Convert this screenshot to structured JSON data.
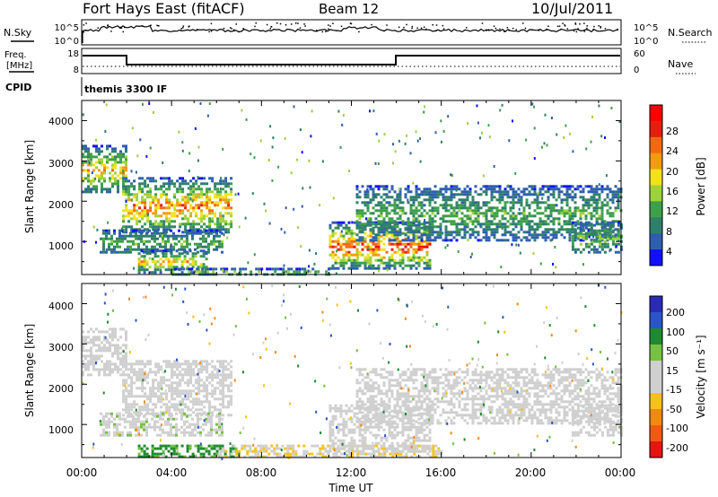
{
  "header": {
    "station": "Fort Hays East (fitACF)",
    "beam": "Beam 12",
    "date": "10/Jul/2011"
  },
  "colors": {
    "power_scale": [
      "#1010ff",
      "#2e5fae",
      "#2f7f6a",
      "#3ea048",
      "#9fd23a",
      "#f2e21a",
      "#f29b0f",
      "#f26a10",
      "#e61e10",
      "#ff0000"
    ],
    "velocity_scale": [
      "#2a2ab8",
      "#2a55c8",
      "#1f8a30",
      "#76c043",
      "#cfcfcf",
      "#cfcfcf",
      "#f6c21a",
      "#f28a12",
      "#f25a12",
      "#e81414"
    ]
  },
  "panels": {
    "noise": {
      "left_label": "N.Sky",
      "right_label": "N.Search",
      "left_ticks": [
        "10^5",
        "10^0"
      ],
      "right_ticks": [
        "10^5",
        "10^0"
      ]
    },
    "freq": {
      "left_label_1": "Freq.",
      "left_label_2": "[MHz]",
      "right_label": "Nave",
      "left_ticks": [
        "18",
        "8"
      ],
      "right_ticks": [
        "60",
        "0"
      ]
    },
    "cpid": {
      "label": "CPID",
      "text": "themis 3300 IF"
    }
  },
  "axes": {
    "y_label": "Slant Range [km]",
    "y_ticks": [
      "4000",
      "3000",
      "2000",
      "1000"
    ],
    "x_label": "Time UT",
    "x_ticks": [
      "00:00",
      "04:00",
      "08:00",
      "12:00",
      "16:00",
      "20:00",
      "00:00"
    ]
  },
  "colorbars": {
    "power_label": "Power [dB]",
    "power_ticks": [
      "28",
      "24",
      "20",
      "16",
      "12",
      "8",
      "4"
    ],
    "velocity_label": "Velocity [m s⁻¹]",
    "velocity_ticks": [
      "200",
      "100",
      "50",
      "15",
      "-15",
      "-50",
      "-100",
      "-200"
    ]
  },
  "chart_data": [
    {
      "type": "heatmap",
      "title": "Power [dB]",
      "xlabel": "Time UT",
      "ylabel": "Slant Range [km]",
      "xlim": [
        0,
        24
      ],
      "ylim": [
        180,
        4500
      ],
      "color_range": [
        0,
        32
      ],
      "regions": [
        {
          "t": [
            0.0,
            2.0
          ],
          "range": [
            2200,
            3400
          ],
          "peak_db": 22
        },
        {
          "t": [
            1.8,
            6.6
          ],
          "range": [
            1200,
            2600
          ],
          "peak_db": 26
        },
        {
          "t": [
            0.8,
            6.2
          ],
          "range": [
            700,
            1300
          ],
          "peak_db": 12
        },
        {
          "t": [
            2.5,
            5.5
          ],
          "range": [
            250,
            800
          ],
          "peak_db": 22
        },
        {
          "t": [
            4.0,
            11.0
          ],
          "range": [
            180,
            350
          ],
          "peak_db": 14
        },
        {
          "t": [
            11.0,
            15.5
          ],
          "range": [
            300,
            1500
          ],
          "peak_db": 30
        },
        {
          "t": [
            12.2,
            24.0
          ],
          "range": [
            1000,
            2400
          ],
          "peak_db": 12
        },
        {
          "t": [
            21.8,
            24.0
          ],
          "range": [
            700,
            1500
          ],
          "peak_db": 14
        }
      ]
    },
    {
      "type": "heatmap",
      "title": "Velocity [m s⁻¹]",
      "xlabel": "Time UT",
      "ylabel": "Slant Range [km]",
      "xlim": [
        0,
        24
      ],
      "ylim": [
        180,
        4500
      ],
      "color_range": [
        -250,
        250
      ],
      "regions": [
        {
          "t": [
            0.0,
            2.0
          ],
          "range": [
            2200,
            3400
          ],
          "velocity": -10
        },
        {
          "t": [
            1.8,
            6.6
          ],
          "range": [
            1200,
            2600
          ],
          "velocity": -30
        },
        {
          "t": [
            0.8,
            6.2
          ],
          "range": [
            700,
            1300
          ],
          "velocity": 0
        },
        {
          "t": [
            2.5,
            7.0
          ],
          "range": [
            180,
            500
          ],
          "velocity": 60
        },
        {
          "t": [
            6.0,
            16.0
          ],
          "range": [
            180,
            500
          ],
          "velocity": -45
        },
        {
          "t": [
            11.0,
            15.5
          ],
          "range": [
            300,
            1500
          ],
          "velocity": -10
        },
        {
          "t": [
            12.2,
            24.0
          ],
          "range": [
            1000,
            2400
          ],
          "velocity": -20
        },
        {
          "t": [
            21.8,
            24.0
          ],
          "range": [
            700,
            1500
          ],
          "velocity": -5
        }
      ]
    }
  ]
}
